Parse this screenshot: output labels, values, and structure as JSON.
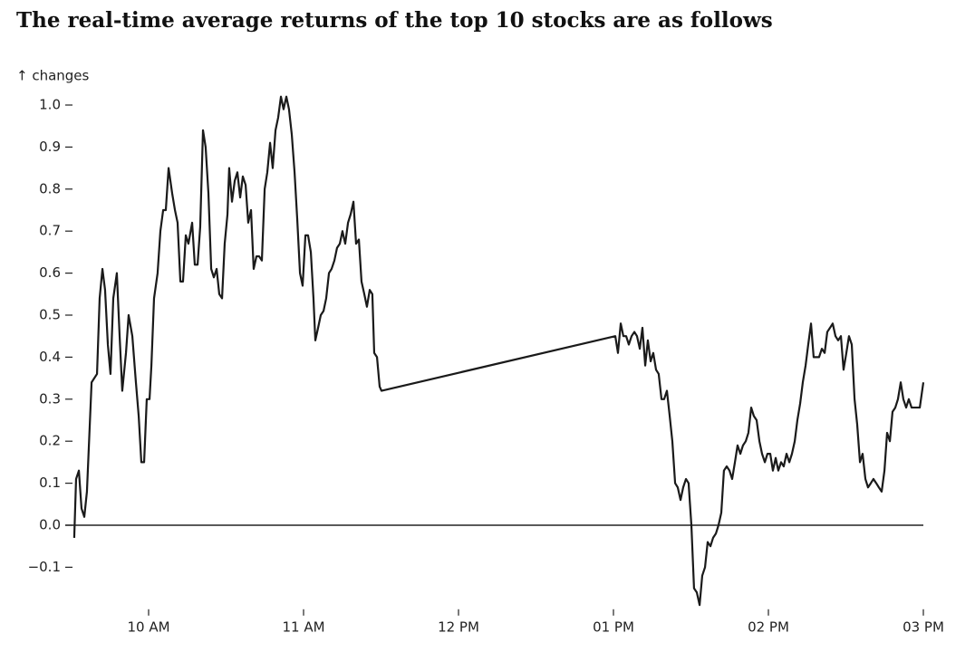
{
  "chart_data": {
    "type": "line",
    "title": "The real-time average returns of the top 10 stocks are as follows",
    "y_label": "↑ changes",
    "x": [
      9.52,
      9.532,
      9.55,
      9.567,
      9.585,
      9.602,
      9.632,
      9.667,
      9.684,
      9.702,
      9.719,
      9.737,
      9.754,
      9.772,
      9.795,
      9.813,
      9.83,
      9.854,
      9.871,
      9.895,
      9.918,
      9.936,
      9.953,
      9.971,
      9.988,
      10.006,
      10.018,
      10.035,
      10.058,
      10.076,
      10.094,
      10.111,
      10.129,
      10.152,
      10.17,
      10.187,
      10.205,
      10.222,
      10.24,
      10.257,
      10.281,
      10.298,
      10.316,
      10.333,
      10.351,
      10.368,
      10.386,
      10.404,
      10.421,
      10.439,
      10.456,
      10.474,
      10.491,
      10.509,
      10.52,
      10.538,
      10.556,
      10.573,
      10.591,
      10.608,
      10.626,
      10.643,
      10.661,
      10.678,
      10.696,
      10.713,
      10.731,
      10.749,
      10.766,
      10.784,
      10.801,
      10.819,
      10.836,
      10.854,
      10.871,
      10.889,
      10.906,
      10.924,
      10.942,
      10.959,
      10.977,
      10.994,
      11.012,
      11.029,
      11.047,
      11.064,
      11.076,
      11.094,
      11.111,
      11.129,
      11.146,
      11.164,
      11.181,
      11.199,
      11.216,
      11.234,
      11.251,
      11.269,
      11.287,
      11.304,
      11.322,
      11.339,
      11.357,
      11.374,
      11.392,
      11.409,
      11.427,
      11.444,
      11.456,
      11.474,
      11.491,
      11.503,
      13.012,
      13.029,
      13.047,
      13.064,
      13.082,
      13.099,
      13.117,
      13.135,
      13.152,
      13.17,
      13.187,
      13.205,
      13.222,
      13.24,
      13.257,
      13.275,
      13.292,
      13.31,
      13.327,
      13.345,
      13.363,
      13.38,
      13.398,
      13.415,
      13.433,
      13.45,
      13.468,
      13.485,
      13.503,
      13.52,
      13.538,
      13.556,
      13.573,
      13.591,
      13.608,
      13.626,
      13.643,
      13.661,
      13.678,
      13.696,
      13.713,
      13.731,
      13.749,
      13.766,
      13.784,
      13.801,
      13.819,
      13.836,
      13.854,
      13.871,
      13.889,
      13.906,
      13.924,
      13.942,
      13.959,
      13.977,
      13.994,
      14.012,
      14.029,
      14.047,
      14.064,
      14.082,
      14.099,
      14.117,
      14.135,
      14.152,
      14.17,
      14.187,
      14.205,
      14.222,
      14.24,
      14.257,
      14.275,
      14.292,
      14.31,
      14.327,
      14.345,
      14.363,
      14.38,
      14.398,
      14.415,
      14.433,
      14.45,
      14.468,
      14.485,
      14.503,
      14.52,
      14.538,
      14.556,
      14.573,
      14.591,
      14.608,
      14.626,
      14.643,
      14.661,
      14.678,
      14.696,
      14.713,
      14.731,
      14.749,
      14.766,
      14.784,
      14.801,
      14.819,
      14.836,
      14.854,
      14.871,
      14.889,
      14.906,
      14.924,
      14.942,
      14.959,
      14.977,
      15.0
    ],
    "series": [
      {
        "color": "#1a1a1a",
        "values": [
          -0.03,
          0.11,
          0.13,
          0.04,
          0.02,
          0.08,
          0.34,
          0.36,
          0.54,
          0.61,
          0.56,
          0.43,
          0.36,
          0.54,
          0.6,
          0.45,
          0.32,
          0.41,
          0.5,
          0.45,
          0.34,
          0.26,
          0.15,
          0.15,
          0.3,
          0.3,
          0.38,
          0.54,
          0.6,
          0.7,
          0.75,
          0.75,
          0.85,
          0.79,
          0.75,
          0.72,
          0.58,
          0.58,
          0.69,
          0.67,
          0.72,
          0.62,
          0.62,
          0.71,
          0.94,
          0.9,
          0.79,
          0.61,
          0.59,
          0.61,
          0.55,
          0.54,
          0.67,
          0.74,
          0.85,
          0.77,
          0.82,
          0.84,
          0.78,
          0.83,
          0.81,
          0.72,
          0.75,
          0.61,
          0.64,
          0.64,
          0.63,
          0.8,
          0.84,
          0.91,
          0.85,
          0.94,
          0.97,
          1.02,
          0.99,
          1.02,
          0.99,
          0.93,
          0.84,
          0.73,
          0.6,
          0.57,
          0.69,
          0.69,
          0.65,
          0.54,
          0.44,
          0.47,
          0.5,
          0.51,
          0.54,
          0.6,
          0.61,
          0.63,
          0.66,
          0.67,
          0.7,
          0.67,
          0.72,
          0.74,
          0.77,
          0.67,
          0.68,
          0.58,
          0.55,
          0.52,
          0.56,
          0.55,
          0.41,
          0.4,
          0.33,
          0.32,
          0.45,
          0.41,
          0.48,
          0.45,
          0.45,
          0.43,
          0.45,
          0.46,
          0.45,
          0.42,
          0.47,
          0.38,
          0.44,
          0.39,
          0.41,
          0.37,
          0.36,
          0.3,
          0.3,
          0.32,
          0.26,
          0.2,
          0.1,
          0.09,
          0.06,
          0.09,
          0.11,
          0.1,
          0.0,
          -0.15,
          -0.16,
          -0.19,
          -0.12,
          -0.1,
          -0.04,
          -0.05,
          -0.03,
          -0.02,
          0.0,
          0.03,
          0.13,
          0.14,
          0.13,
          0.11,
          0.15,
          0.19,
          0.17,
          0.19,
          0.2,
          0.22,
          0.28,
          0.26,
          0.25,
          0.2,
          0.17,
          0.15,
          0.17,
          0.17,
          0.13,
          0.16,
          0.13,
          0.15,
          0.14,
          0.17,
          0.15,
          0.17,
          0.2,
          0.25,
          0.29,
          0.34,
          0.38,
          0.43,
          0.48,
          0.4,
          0.4,
          0.4,
          0.42,
          0.41,
          0.46,
          0.47,
          0.48,
          0.45,
          0.44,
          0.45,
          0.37,
          0.41,
          0.45,
          0.43,
          0.3,
          0.24,
          0.15,
          0.17,
          0.11,
          0.09,
          0.1,
          0.11,
          0.1,
          0.09,
          0.08,
          0.13,
          0.22,
          0.2,
          0.27,
          0.28,
          0.3,
          0.34,
          0.3,
          0.28,
          0.3,
          0.28,
          0.28,
          0.28,
          0.28,
          0.34
        ]
      }
    ],
    "xlim": [
      9.5,
      15.0
    ],
    "xticks": [
      {
        "value": 10,
        "label": "10 AM"
      },
      {
        "value": 11,
        "label": "11 AM"
      },
      {
        "value": 12,
        "label": "12 PM"
      },
      {
        "value": 13,
        "label": "01 PM"
      },
      {
        "value": 14,
        "label": "02 PM"
      },
      {
        "value": 15,
        "label": "03 PM"
      }
    ],
    "ylim": [
      -0.2,
      1.05
    ],
    "yticks": [
      {
        "value": 1.0,
        "label": "1.0"
      },
      {
        "value": 0.9,
        "label": "0.9"
      },
      {
        "value": 0.8,
        "label": "0.8"
      },
      {
        "value": 0.7,
        "label": "0.7"
      },
      {
        "value": 0.6,
        "label": "0.6"
      },
      {
        "value": 0.5,
        "label": "0.5"
      },
      {
        "value": 0.4,
        "label": "0.4"
      },
      {
        "value": 0.3,
        "label": "0.3"
      },
      {
        "value": 0.2,
        "label": "0.2"
      },
      {
        "value": 0.1,
        "label": "0.1"
      },
      {
        "value": 0,
        "label": "0.0"
      },
      {
        "value": -0.1,
        "label": "−0.1"
      }
    ],
    "zero_line": true
  }
}
